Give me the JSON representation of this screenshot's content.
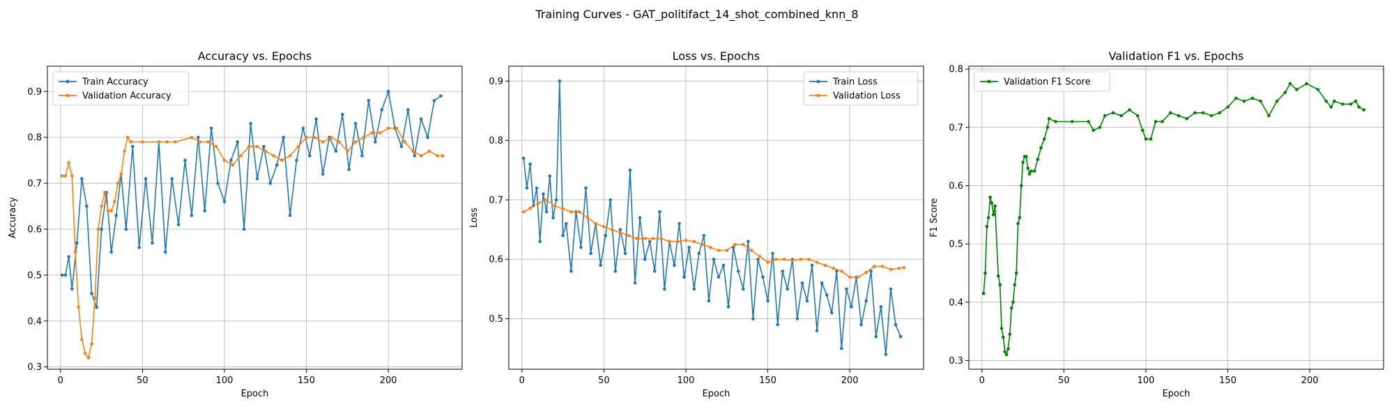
{
  "figure": {
    "suptitle": "Training Curves - GAT_politifact_14_shot_combined_knn_8"
  },
  "colors": {
    "train": "#1f77b4",
    "validation": "#ff7f0e",
    "f1": "#008000",
    "grid": "#b0b0b0"
  },
  "chart_data": [
    {
      "type": "line",
      "title": "Accuracy vs. Epochs",
      "xlabel": "Epoch",
      "ylabel": "Accuracy",
      "xlim": [
        -8,
        245
      ],
      "ylim": [
        0.295,
        0.955
      ],
      "xticks": [
        0,
        50,
        100,
        150,
        200
      ],
      "yticks": [
        0.3,
        0.4,
        0.5,
        0.6,
        0.7,
        0.8,
        0.9
      ],
      "grid": true,
      "legend_position": "upper-left",
      "series": [
        {
          "name": "Train Accuracy",
          "color": "#1f77b4",
          "x": [
            1,
            3,
            5,
            7,
            10,
            13,
            16,
            19,
            22,
            25,
            28,
            31,
            34,
            37,
            40,
            44,
            48,
            52,
            56,
            60,
            64,
            68,
            72,
            76,
            80,
            84,
            88,
            92,
            96,
            100,
            104,
            108,
            112,
            116,
            120,
            124,
            128,
            132,
            136,
            140,
            144,
            148,
            152,
            156,
            160,
            164,
            168,
            172,
            176,
            180,
            184,
            188,
            192,
            196,
            200,
            204,
            208,
            212,
            216,
            220,
            224,
            228,
            232
          ],
          "y": [
            0.5,
            0.5,
            0.54,
            0.47,
            0.57,
            0.71,
            0.65,
            0.46,
            0.43,
            0.6,
            0.68,
            0.55,
            0.63,
            0.72,
            0.6,
            0.78,
            0.56,
            0.71,
            0.57,
            0.79,
            0.55,
            0.71,
            0.61,
            0.75,
            0.63,
            0.8,
            0.64,
            0.82,
            0.7,
            0.66,
            0.75,
            0.79,
            0.6,
            0.83,
            0.71,
            0.78,
            0.7,
            0.74,
            0.8,
            0.63,
            0.75,
            0.82,
            0.76,
            0.84,
            0.72,
            0.8,
            0.77,
            0.85,
            0.73,
            0.83,
            0.76,
            0.88,
            0.79,
            0.86,
            0.9,
            0.82,
            0.78,
            0.86,
            0.76,
            0.84,
            0.8,
            0.88,
            0.89
          ]
        },
        {
          "name": "Validation Accuracy",
          "color": "#ff7f0e",
          "x": [
            1,
            3,
            5,
            7,
            9,
            11,
            13,
            15,
            17,
            19,
            21,
            23,
            25,
            27,
            29,
            31,
            33,
            35,
            37,
            39,
            41,
            43,
            50,
            60,
            65,
            70,
            80,
            85,
            90,
            95,
            100,
            105,
            110,
            115,
            120,
            125,
            130,
            135,
            140,
            145,
            150,
            155,
            160,
            165,
            170,
            175,
            180,
            185,
            190,
            195,
            200,
            205,
            210,
            215,
            220,
            225,
            230,
            233
          ],
          "y": [
            0.716,
            0.716,
            0.745,
            0.716,
            0.55,
            0.43,
            0.36,
            0.33,
            0.32,
            0.35,
            0.45,
            0.6,
            0.65,
            0.68,
            0.64,
            0.64,
            0.66,
            0.7,
            0.72,
            0.77,
            0.8,
            0.79,
            0.79,
            0.79,
            0.79,
            0.79,
            0.8,
            0.79,
            0.79,
            0.78,
            0.75,
            0.74,
            0.76,
            0.78,
            0.78,
            0.77,
            0.76,
            0.75,
            0.76,
            0.78,
            0.8,
            0.8,
            0.79,
            0.8,
            0.79,
            0.77,
            0.79,
            0.8,
            0.81,
            0.81,
            0.82,
            0.82,
            0.79,
            0.77,
            0.76,
            0.77,
            0.76,
            0.76
          ]
        }
      ]
    },
    {
      "type": "line",
      "title": "Loss vs. Epochs",
      "xlabel": "Epoch",
      "ylabel": "Loss",
      "xlim": [
        -8,
        245
      ],
      "ylim": [
        0.415,
        0.925
      ],
      "xticks": [
        0,
        50,
        100,
        150,
        200
      ],
      "yticks": [
        0.5,
        0.6,
        0.7,
        0.8,
        0.9
      ],
      "grid": true,
      "legend_position": "upper-right",
      "series": [
        {
          "name": "Train Loss",
          "color": "#1f77b4",
          "x": [
            1,
            3,
            5,
            7,
            9,
            11,
            13,
            15,
            17,
            19,
            21,
            23,
            25,
            27,
            30,
            33,
            36,
            39,
            42,
            45,
            48,
            51,
            54,
            57,
            60,
            63,
            66,
            69,
            72,
            75,
            78,
            81,
            84,
            87,
            90,
            93,
            96,
            99,
            102,
            105,
            108,
            111,
            114,
            117,
            120,
            123,
            126,
            129,
            132,
            135,
            138,
            141,
            144,
            147,
            150,
            153,
            156,
            159,
            162,
            165,
            168,
            171,
            174,
            177,
            180,
            183,
            186,
            189,
            192,
            195,
            198,
            201,
            204,
            207,
            210,
            213,
            216,
            219,
            222,
            225,
            228,
            231
          ],
          "y": [
            0.77,
            0.72,
            0.76,
            0.69,
            0.72,
            0.63,
            0.71,
            0.68,
            0.74,
            0.67,
            0.7,
            0.9,
            0.64,
            0.66,
            0.58,
            0.68,
            0.62,
            0.72,
            0.61,
            0.66,
            0.59,
            0.64,
            0.7,
            0.58,
            0.65,
            0.61,
            0.75,
            0.56,
            0.67,
            0.6,
            0.63,
            0.58,
            0.68,
            0.55,
            0.63,
            0.59,
            0.66,
            0.57,
            0.62,
            0.55,
            0.61,
            0.64,
            0.53,
            0.6,
            0.57,
            0.59,
            0.52,
            0.62,
            0.58,
            0.55,
            0.63,
            0.5,
            0.6,
            0.57,
            0.53,
            0.61,
            0.49,
            0.58,
            0.55,
            0.6,
            0.5,
            0.56,
            0.53,
            0.59,
            0.48,
            0.56,
            0.54,
            0.51,
            0.58,
            0.45,
            0.55,
            0.52,
            0.57,
            0.49,
            0.53,
            0.58,
            0.47,
            0.52,
            0.44,
            0.55,
            0.49,
            0.47
          ]
        },
        {
          "name": "Validation Loss",
          "color": "#ff7f0e",
          "x": [
            1,
            5,
            10,
            15,
            20,
            25,
            30,
            35,
            40,
            45,
            50,
            55,
            60,
            65,
            70,
            75,
            80,
            85,
            90,
            95,
            100,
            105,
            110,
            115,
            120,
            125,
            130,
            135,
            140,
            145,
            150,
            155,
            160,
            165,
            170,
            175,
            180,
            185,
            190,
            195,
            200,
            205,
            210,
            215,
            220,
            225,
            230,
            233
          ],
          "y": [
            0.68,
            0.686,
            0.695,
            0.7,
            0.69,
            0.685,
            0.68,
            0.68,
            0.67,
            0.66,
            0.655,
            0.65,
            0.645,
            0.64,
            0.635,
            0.635,
            0.635,
            0.635,
            0.63,
            0.63,
            0.632,
            0.63,
            0.625,
            0.62,
            0.615,
            0.615,
            0.625,
            0.625,
            0.615,
            0.605,
            0.595,
            0.6,
            0.6,
            0.598,
            0.6,
            0.6,
            0.595,
            0.59,
            0.585,
            0.58,
            0.57,
            0.57,
            0.578,
            0.588,
            0.588,
            0.583,
            0.585,
            0.586
          ]
        }
      ]
    },
    {
      "type": "line",
      "title": "Validation F1 vs. Epochs",
      "xlabel": "Epoch",
      "ylabel": "F1 Score",
      "xlim": [
        -8,
        245
      ],
      "ylim": [
        0.285,
        0.805
      ],
      "xticks": [
        0,
        50,
        100,
        150,
        200
      ],
      "yticks": [
        0.3,
        0.4,
        0.5,
        0.6,
        0.7,
        0.8
      ],
      "grid": true,
      "legend_position": "upper-left",
      "series": [
        {
          "name": "Validation F1 Score",
          "color": "#008000",
          "x": [
            1,
            2,
            3,
            4,
            5,
            6,
            7,
            8,
            10,
            11,
            12,
            13,
            14,
            15,
            16,
            17,
            18,
            19,
            20,
            21,
            22,
            23,
            24,
            25,
            26,
            27,
            28,
            29,
            30,
            32,
            34,
            36,
            38,
            40,
            41,
            45,
            55,
            65,
            68,
            72,
            75,
            80,
            85,
            90,
            95,
            98,
            100,
            103,
            106,
            110,
            115,
            120,
            125,
            130,
            135,
            140,
            145,
            150,
            155,
            160,
            165,
            170,
            175,
            180,
            185,
            188,
            192,
            198,
            205,
            210,
            213,
            215,
            220,
            225,
            228,
            230,
            233
          ],
          "y": [
            0.415,
            0.45,
            0.53,
            0.545,
            0.58,
            0.57,
            0.55,
            0.565,
            0.445,
            0.43,
            0.355,
            0.34,
            0.315,
            0.31,
            0.32,
            0.345,
            0.39,
            0.4,
            0.43,
            0.45,
            0.535,
            0.545,
            0.6,
            0.64,
            0.65,
            0.65,
            0.63,
            0.62,
            0.625,
            0.625,
            0.645,
            0.665,
            0.68,
            0.7,
            0.715,
            0.71,
            0.71,
            0.71,
            0.695,
            0.7,
            0.72,
            0.725,
            0.72,
            0.73,
            0.72,
            0.695,
            0.68,
            0.68,
            0.71,
            0.71,
            0.725,
            0.72,
            0.715,
            0.725,
            0.725,
            0.72,
            0.725,
            0.735,
            0.75,
            0.745,
            0.75,
            0.745,
            0.72,
            0.745,
            0.76,
            0.775,
            0.765,
            0.775,
            0.765,
            0.745,
            0.735,
            0.745,
            0.74,
            0.74,
            0.745,
            0.735,
            0.73
          ]
        }
      ]
    }
  ]
}
